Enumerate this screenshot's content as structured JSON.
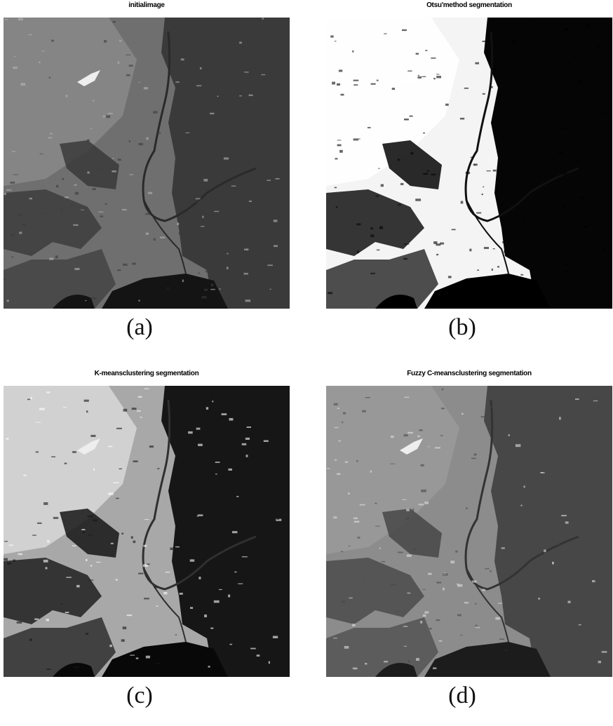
{
  "figure": {
    "panels": [
      {
        "title": "initialimage",
        "caption": "(a)"
      },
      {
        "title": "Otsu'method segmentation",
        "caption": "(b)"
      },
      {
        "title": "K-meansclustering segmentation",
        "caption": "(c)"
      },
      {
        "title": "Fuzzy C-meansclustering segmentation",
        "caption": "(d)"
      }
    ]
  }
}
